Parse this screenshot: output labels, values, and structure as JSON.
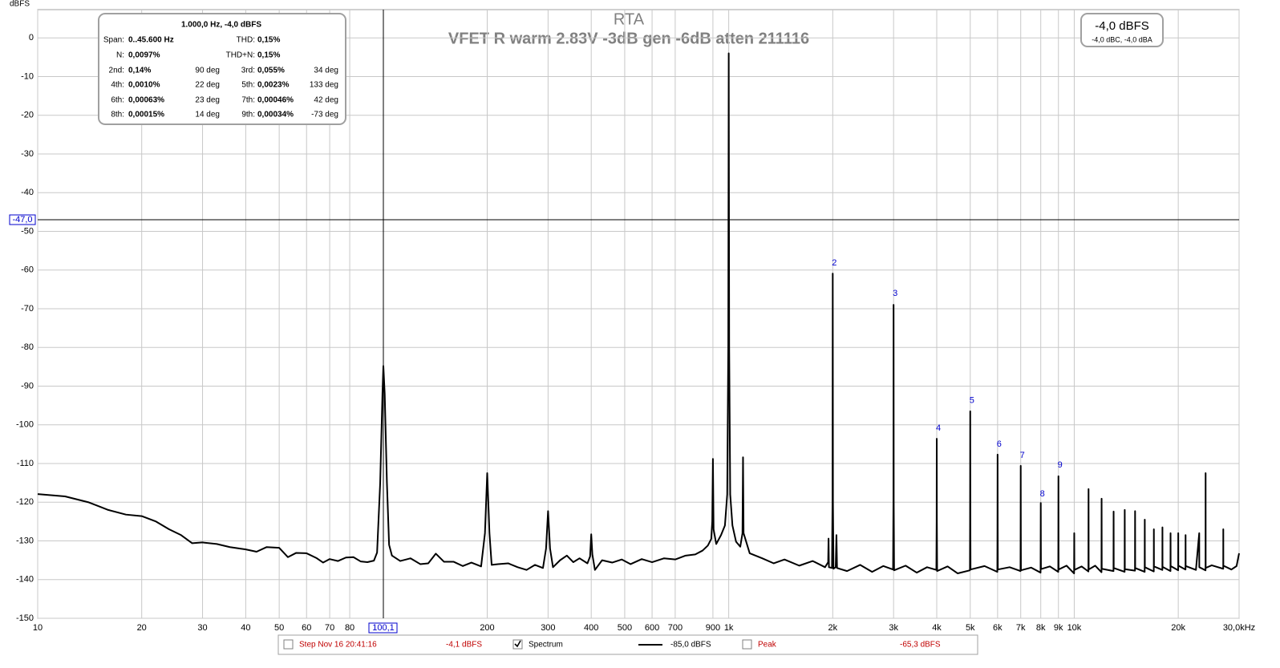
{
  "chart_data": {
    "type": "line",
    "title": "RTA",
    "subtitle": "VFET R warm 2.83V -3dB gen -6dB atten 211116",
    "y_label": "dBFS",
    "xscale": "log",
    "grid": true,
    "xlim": [
      10,
      30000
    ],
    "ylim": [
      -150,
      7.3
    ],
    "xticks": [
      10,
      20,
      30,
      40,
      50,
      60,
      70,
      80,
      200,
      300,
      400,
      500,
      600,
      700,
      900,
      {
        "value": 1000,
        "label": "1k"
      },
      {
        "value": 2000,
        "label": "2k"
      },
      {
        "value": 3000,
        "label": "3k"
      },
      {
        "value": 4000,
        "label": "4k"
      },
      {
        "value": 5000,
        "label": "5k"
      },
      {
        "value": 6000,
        "label": "6k"
      },
      {
        "value": 7000,
        "label": "7k"
      },
      {
        "value": 8000,
        "label": "8k"
      },
      {
        "value": 9000,
        "label": "9k"
      },
      {
        "value": 10000,
        "label": "10k"
      },
      {
        "value": 20000,
        "label": "20k"
      },
      {
        "value": 30000,
        "label": "30,0kHz"
      }
    ],
    "yticks": [
      0,
      -10,
      -20,
      -30,
      -40,
      -50,
      -60,
      -70,
      -80,
      -90,
      -100,
      -110,
      -120,
      -130,
      -140,
      -150
    ],
    "cursor": {
      "x": {
        "value": 100.1,
        "label": "100,1"
      },
      "y": {
        "value": -47,
        "label": "-47,0"
      }
    },
    "series": [
      {
        "name": "Spectrum",
        "color": "#000000",
        "level": "-85,0 dBFS",
        "checked": true,
        "x": [
          10,
          12,
          14,
          16,
          18,
          20,
          22,
          24,
          26,
          28,
          30,
          33,
          36,
          40,
          43,
          46,
          50,
          53,
          56,
          60,
          64,
          67,
          70,
          74,
          78,
          82,
          86,
          90,
          94,
          96,
          98,
          99.5,
          100.1,
          101,
          102.5,
          104,
          106,
          112,
          120,
          128,
          135,
          142,
          150,
          160,
          170,
          180,
          192,
          197,
          200,
          203,
          206,
          215,
          230,
          245,
          260,
          275,
          290,
          296,
          300,
          304,
          310,
          325,
          340,
          355,
          370,
          390,
          397,
          400,
          403,
          410,
          430,
          460,
          490,
          520,
          560,
          600,
          650,
          700,
          750,
          800,
          840,
          870,
          890,
          896,
          900,
          904,
          920,
          950,
          975,
          990,
          997,
          1000,
          1003,
          1010,
          1025,
          1050,
          1080,
          1096,
          1100,
          1104,
          1150,
          1250,
          1350,
          1450,
          1600,
          1750,
          1900,
          1940,
          1945,
          1950,
          1990,
          1997,
          2000,
          2003,
          2010,
          2040,
          2050,
          2058,
          2200,
          2400,
          2600,
          2800,
          2990,
          2997,
          3000,
          3003,
          3010,
          3250,
          3500,
          3750,
          3990,
          3997,
          4000,
          4003,
          4010,
          4300,
          4600,
          4990,
          4995,
          5000,
          5005,
          5010,
          5500,
          5990,
          5995,
          6000,
          6005,
          6010,
          6500,
          6990,
          6995,
          7000,
          7005,
          7010,
          7500,
          7990,
          7995,
          8000,
          8005,
          8010,
          8500,
          8990,
          8995,
          9000,
          9005,
          9010,
          9500,
          9990,
          10000,
          10010,
          10500,
          10990,
          11000,
          11010,
          11500,
          11990,
          12000,
          12010,
          12990,
          13000,
          13010,
          13990,
          14000,
          14010,
          14990,
          15000,
          15010,
          15990,
          16000,
          16010,
          16990,
          17000,
          17010,
          17990,
          18000,
          18010,
          18990,
          19000,
          19010,
          19990,
          20000,
          20010,
          20990,
          21000,
          21010,
          22500,
          23000,
          23010,
          23990,
          24000,
          24010,
          25000,
          26990,
          27000,
          27010,
          28500,
          29500,
          30000
        ],
        "values": [
          -117.9,
          -118.5,
          -120,
          -122,
          -123.2,
          -123.6,
          -125,
          -127,
          -128.5,
          -130.6,
          -130.4,
          -130.8,
          -131.6,
          -132.2,
          -132.8,
          -131.6,
          -131.8,
          -134.2,
          -133.1,
          -133.2,
          -134.4,
          -135.6,
          -134.7,
          -135.2,
          -134.3,
          -134.2,
          -135.3,
          -135.5,
          -135.1,
          -133,
          -115,
          -92,
          -84.8,
          -92,
          -115,
          -131,
          -133.8,
          -135.2,
          -134.5,
          -136,
          -135.8,
          -133.3,
          -135.4,
          -135.4,
          -136.5,
          -135.6,
          -136.6,
          -128,
          -112.5,
          -128,
          -136.2,
          -136,
          -135.8,
          -136.8,
          -137.5,
          -136.2,
          -137,
          -132,
          -122.3,
          -132,
          -136.8,
          -135,
          -133.8,
          -135.5,
          -134.5,
          -135.8,
          -134,
          -128.3,
          -133.5,
          -137.5,
          -135,
          -135.6,
          -134.8,
          -136,
          -134.7,
          -135.5,
          -134.5,
          -134.8,
          -133.8,
          -133.5,
          -132.5,
          -131.2,
          -129.5,
          -125,
          -108.8,
          -127,
          -130.8,
          -128.5,
          -126,
          -118,
          -80,
          -4,
          -80,
          -118,
          -126,
          -130.2,
          -131.5,
          -128,
          -108.4,
          -128,
          -133.2,
          -134.5,
          -135.8,
          -134.8,
          -136.4,
          -135.2,
          -136.8,
          -135.5,
          -129.4,
          -136.8,
          -137,
          -120,
          -60.9,
          -120,
          -137.2,
          -136.8,
          -128.5,
          -137,
          -137.8,
          -136.2,
          -138,
          -136.5,
          -137.4,
          -120,
          -69,
          -120,
          -137.6,
          -136.4,
          -138.2,
          -136.8,
          -137.5,
          -125,
          -103.6,
          -125,
          -137.8,
          -136.6,
          -138.4,
          -137.6,
          -125,
          -96.5,
          -125,
          -137.4,
          -136.5,
          -138,
          -127,
          -107.7,
          -127,
          -137.4,
          -136.8,
          -137.8,
          -128,
          -110.6,
          -128,
          -137.6,
          -136.9,
          -138.2,
          -130,
          -120.2,
          -130,
          -137.3,
          -136.6,
          -138,
          -128,
          -113.3,
          -128,
          -137.4,
          -136.4,
          -138.4,
          -128,
          -137.5,
          -136.6,
          -137.9,
          -116.6,
          -137.4,
          -136.4,
          -138.1,
          -119.1,
          -137.2,
          -137.8,
          -122.4,
          -137,
          -138,
          -122,
          -137.3,
          -137.7,
          -122.3,
          -137,
          -138,
          -124.5,
          -136.8,
          -137.9,
          -127,
          -136.6,
          -137.5,
          -126.5,
          -136.7,
          -137.8,
          -128,
          -136.5,
          -137.6,
          -128,
          -136.4,
          -137.4,
          -128.5,
          -136.5,
          -137.5,
          -128,
          -136.8,
          -137.6,
          -112.5,
          -137,
          -136.3,
          -137.2,
          -127,
          -136.4,
          -137.4,
          -136.5,
          -133.2
        ]
      }
    ],
    "harmonics": [
      {
        "label": "2",
        "x": 2000,
        "y": -58.2
      },
      {
        "label": "3",
        "x": 3000,
        "y": -66.1
      },
      {
        "label": "4",
        "x": 4000,
        "y": -100.9
      },
      {
        "label": "5",
        "x": 5000,
        "y": -93.8
      },
      {
        "label": "6",
        "x": 6000,
        "y": -105
      },
      {
        "label": "7",
        "x": 7000,
        "y": -107.9
      },
      {
        "label": "8",
        "x": 8000,
        "y": -117.9
      },
      {
        "label": "9",
        "x": 9000,
        "y": -110.4
      }
    ],
    "info_box": {
      "header": "1.000,0 Hz, -4,0 dBFS",
      "rows": [
        [
          "Span:",
          "0..45.600 Hz",
          "THD:",
          "0,15%"
        ],
        [
          "N:",
          "0,0097%",
          "THD+N:",
          "0,15%"
        ],
        [
          "2nd:",
          "0,14%",
          "90 deg",
          "3rd:",
          "0,055%",
          "34 deg"
        ],
        [
          "4th:",
          "0,0010%",
          "22 deg",
          "5th:",
          "0,0023%",
          "133 deg"
        ],
        [
          "6th:",
          "0,00063%",
          "23 deg",
          "7th:",
          "0,00046%",
          "42 deg"
        ],
        [
          "8th:",
          "0,00015%",
          "14 deg",
          "9th:",
          "0,00034%",
          "-73 deg"
        ]
      ]
    },
    "level_box": {
      "main": "-4,0 dBFS",
      "sub": "-4,0 dBC, -4,0 dBA"
    },
    "other_traces": [
      {
        "name": "Step Nov 16 20:41:16",
        "level": "-4,1 dBFS",
        "checked": false,
        "color": "#c00000"
      },
      {
        "name": "Peak",
        "level": "-65,3 dBFS",
        "checked": false,
        "color": "#c00000"
      }
    ]
  }
}
